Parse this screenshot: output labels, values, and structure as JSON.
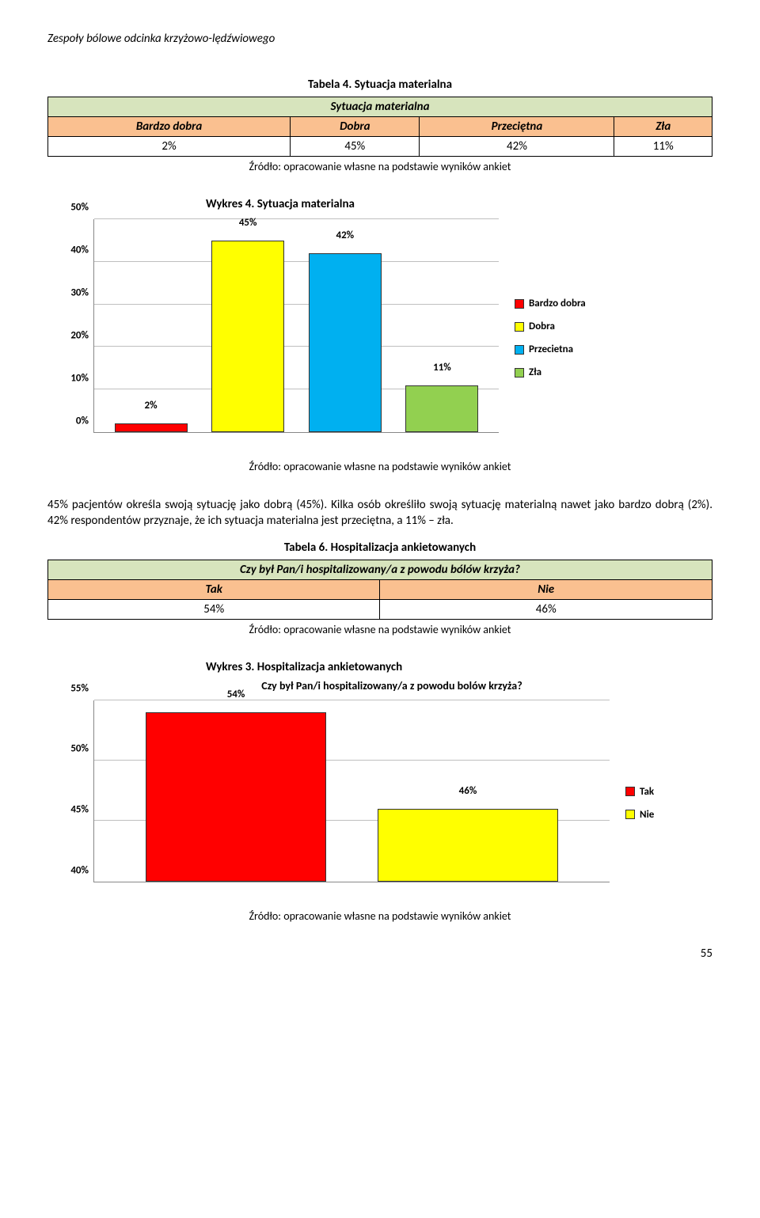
{
  "header": "Zespoły bólowe odcinka krzyżowo-lędźwiowego",
  "table4": {
    "caption": "Tabela 4. Sytuacja materialna",
    "title_row": "Sytuacja materialna",
    "columns": [
      "Bardzo dobra",
      "Dobra",
      "Przeciętna",
      "Zła"
    ],
    "values": [
      "2%",
      "45%",
      "42%",
      "11%"
    ],
    "source": "Źródło: opracowanie własne na podstawie wyników ankiet"
  },
  "chart1": {
    "caption": "Wykres 4. Sytuacja materialna",
    "yticks": [
      "0%",
      "10%",
      "20%",
      "30%",
      "40%",
      "50%"
    ],
    "ymax": 50,
    "bars": [
      {
        "label": "2%",
        "value": 2,
        "color": "#ff0000"
      },
      {
        "label": "45%",
        "value": 45,
        "color": "#ffff00"
      },
      {
        "label": "42%",
        "value": 42,
        "color": "#00b0f0"
      },
      {
        "label": "11%",
        "value": 11,
        "color": "#92d050"
      }
    ],
    "legend": [
      {
        "label": "Bardzo dobra",
        "color": "#ff0000"
      },
      {
        "label": "Dobra",
        "color": "#ffff00"
      },
      {
        "label": "Przecietna",
        "color": "#00b0f0"
      },
      {
        "label": "Zła",
        "color": "#92d050"
      }
    ],
    "source": "Źródło: opracowanie własne na podstawie wyników ankiet",
    "bar_width_pct": 18,
    "gap_pct": 6,
    "grid_color": "#bfbfbf"
  },
  "body1": "45% pacjentów określa swoją sytuację jako dobrą (45%). Kilka osób określiło swoją sytuację materialną nawet jako bardzo dobrą (2%). 42% respondentów przyznaje, że ich sytuacja materialna jest przeciętna, a 11% – zła.",
  "table6": {
    "caption": "Tabela 6. Hospitalizacja ankietowanych",
    "title_row": "Czy był Pan/i hospitalizowany/a z powodu bólów krzyża?",
    "columns": [
      "Tak",
      "Nie"
    ],
    "values": [
      "54%",
      "46%"
    ],
    "source": "Źródło: opracowanie własne na podstawie wyników ankiet"
  },
  "chart2": {
    "caption": "Wykres 3. Hospitalizacja ankietowanych",
    "title": "Czy był Pan/i hospitalizowany/a z powodu bolów krzyża?",
    "yticks": [
      "40%",
      "45%",
      "50%",
      "55%"
    ],
    "ymin": 40,
    "ymax": 55,
    "bars": [
      {
        "label": "54%",
        "value": 54,
        "color": "#ff0000"
      },
      {
        "label": "46%",
        "value": 46,
        "color": "#ffff00"
      }
    ],
    "legend": [
      {
        "label": "Tak",
        "color": "#ff0000"
      },
      {
        "label": "Nie",
        "color": "#ffff00"
      }
    ],
    "source": "Źródło: opracowanie własne na podstawie wyników ankiet",
    "bar_width_pct": 35,
    "gap_pct": 10
  },
  "page_number": "55"
}
